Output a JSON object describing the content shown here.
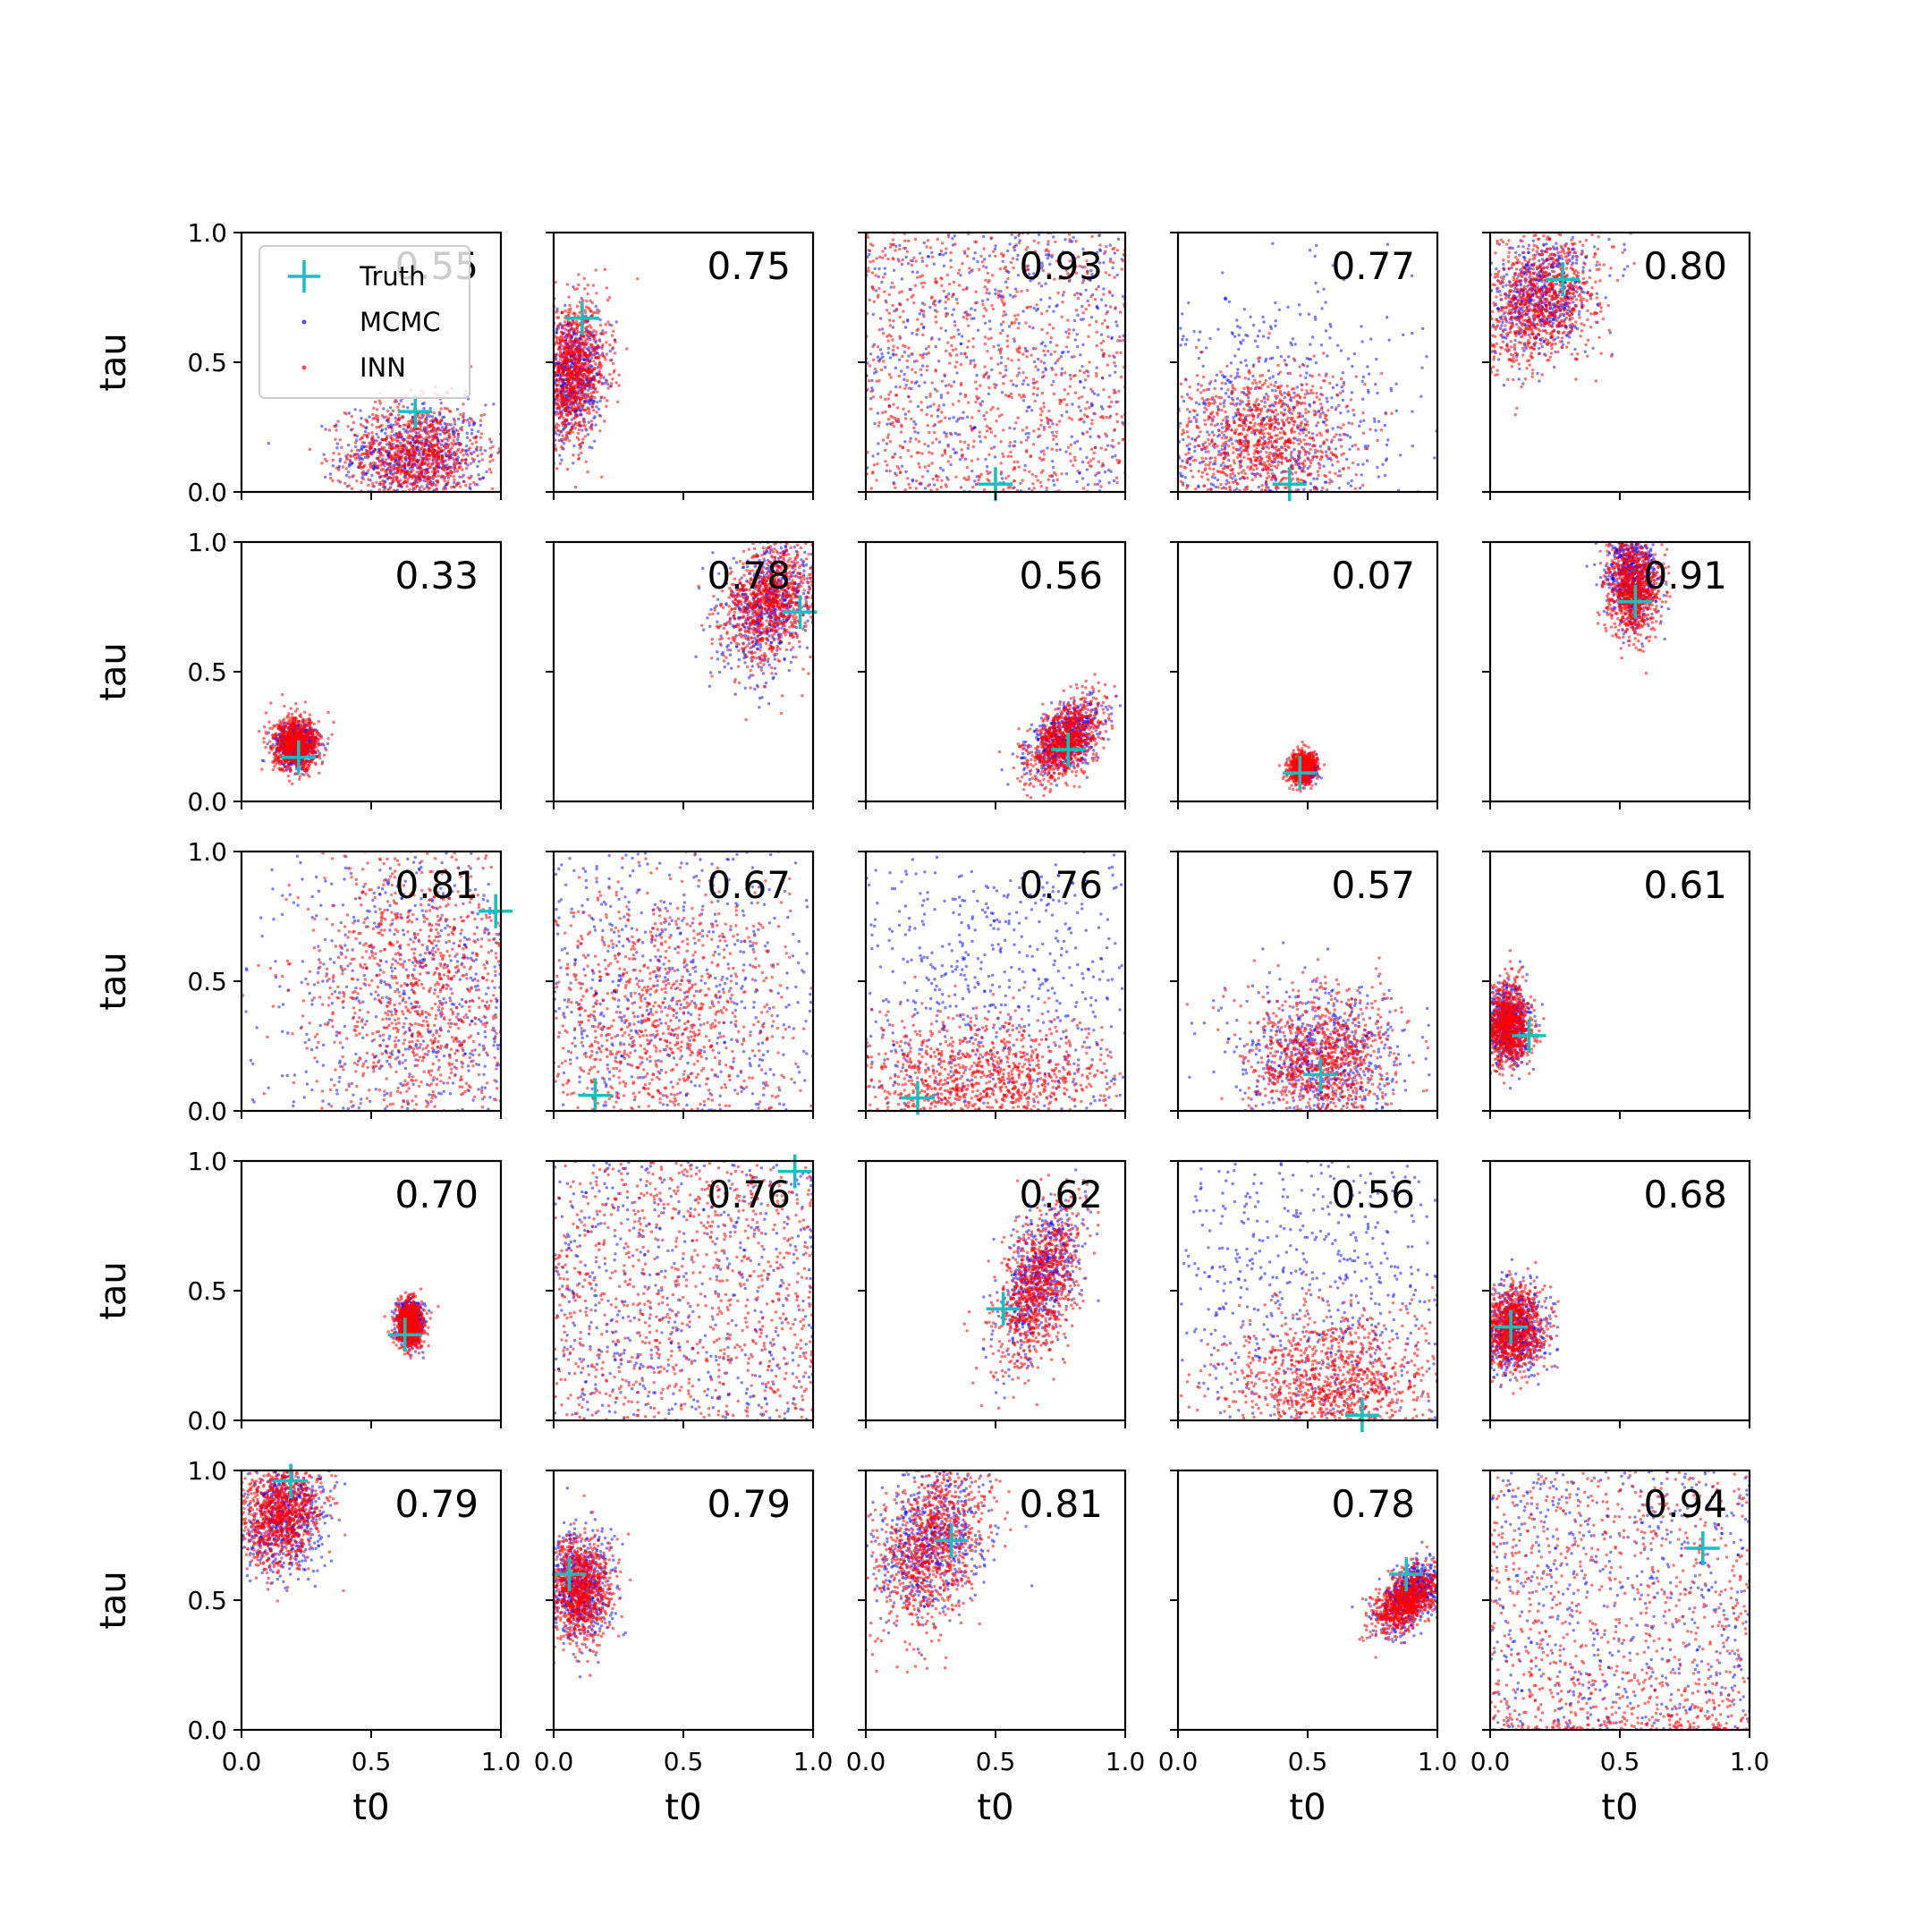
{
  "chart_data": {
    "type": "scatter",
    "grid": false,
    "rows": 5,
    "cols": 5,
    "xlabel": "t0",
    "ylabel": "tau",
    "xlim": [
      0,
      1
    ],
    "ylim": [
      0,
      1
    ],
    "xticks": [
      "0.0",
      "0.5",
      "1.0"
    ],
    "yticks": [
      "0.0",
      "0.5",
      "1.0"
    ],
    "legend": {
      "placement": "upper-left of first panel",
      "entries": [
        {
          "name": "Truth",
          "marker": "plus",
          "color": "#17bfbf"
        },
        {
          "name": "MCMC",
          "marker": "dot",
          "color": "#0000ff"
        },
        {
          "name": "INN",
          "marker": "dot",
          "color": "#ff0000"
        }
      ]
    },
    "colors": {
      "truth": "#17bfbf",
      "mcmc": "#0000ff",
      "inn": "#ff0000"
    },
    "panels": [
      {
        "value": "0.55",
        "truth": [
          0.67,
          0.31
        ],
        "mcmc": {
          "kind": "blob",
          "cx": 0.67,
          "cy": 0.14,
          "sx": 0.14,
          "sy": 0.1,
          "rho": 0.0
        },
        "inn": {
          "kind": "blob",
          "cx": 0.67,
          "cy": 0.14,
          "sx": 0.13,
          "sy": 0.1,
          "rho": 0.0
        }
      },
      {
        "value": "0.75",
        "truth": [
          0.11,
          0.67
        ],
        "mcmc": {
          "kind": "blob",
          "cx": 0.07,
          "cy": 0.45,
          "sx": 0.06,
          "sy": 0.12,
          "rho": 0.2
        },
        "inn": {
          "kind": "blob",
          "cx": 0.07,
          "cy": 0.45,
          "sx": 0.07,
          "sy": 0.13,
          "rho": 0.2
        }
      },
      {
        "value": "0.93",
        "truth": [
          0.5,
          0.03
        ],
        "mcmc": {
          "kind": "uniform"
        },
        "inn": {
          "kind": "uniform"
        }
      },
      {
        "value": "0.77",
        "truth": [
          0.43,
          0.03
        ],
        "mcmc": {
          "kind": "wide",
          "cx": 0.3,
          "cy": 0.18,
          "sx": 0.3,
          "sy": 0.3
        },
        "inn": {
          "kind": "blob",
          "cx": 0.32,
          "cy": 0.2,
          "sx": 0.17,
          "sy": 0.14,
          "rho": 0.0
        }
      },
      {
        "value": "0.80",
        "truth": [
          0.28,
          0.82
        ],
        "mcmc": {
          "kind": "blob",
          "cx": 0.2,
          "cy": 0.76,
          "sx": 0.1,
          "sy": 0.12,
          "rho": 0.3
        },
        "inn": {
          "kind": "blob",
          "cx": 0.2,
          "cy": 0.74,
          "sx": 0.11,
          "sy": 0.13,
          "rho": 0.3
        }
      },
      {
        "value": "0.33",
        "truth": [
          0.22,
          0.17
        ],
        "mcmc": {
          "kind": "blob",
          "cx": 0.21,
          "cy": 0.22,
          "sx": 0.04,
          "sy": 0.04,
          "rho": 0.0
        },
        "inn": {
          "kind": "blob",
          "cx": 0.21,
          "cy": 0.22,
          "sx": 0.045,
          "sy": 0.05,
          "rho": 0.0
        }
      },
      {
        "value": "0.78",
        "truth": [
          0.95,
          0.73
        ],
        "mcmc": {
          "kind": "blob",
          "cx": 0.83,
          "cy": 0.76,
          "sx": 0.09,
          "sy": 0.13,
          "rho": 0.3
        },
        "inn": {
          "kind": "blob",
          "cx": 0.84,
          "cy": 0.78,
          "sx": 0.09,
          "sy": 0.12,
          "rho": 0.3
        }
      },
      {
        "value": "0.56",
        "truth": [
          0.78,
          0.2
        ],
        "mcmc": {
          "kind": "blob",
          "cx": 0.77,
          "cy": 0.24,
          "sx": 0.07,
          "sy": 0.07,
          "rho": 0.5
        },
        "inn": {
          "kind": "blob",
          "cx": 0.77,
          "cy": 0.24,
          "sx": 0.07,
          "sy": 0.08,
          "rho": 0.5
        }
      },
      {
        "value": "0.07",
        "truth": [
          0.47,
          0.11
        ],
        "mcmc": {
          "kind": "blob",
          "cx": 0.49,
          "cy": 0.12,
          "sx": 0.02,
          "sy": 0.02,
          "rho": 0.0
        },
        "inn": {
          "kind": "blob",
          "cx": 0.48,
          "cy": 0.13,
          "sx": 0.025,
          "sy": 0.03,
          "rho": 0.2
        }
      },
      {
        "value": "0.91",
        "truth": [
          0.56,
          0.77
        ],
        "mcmc": {
          "kind": "blob",
          "cx": 0.55,
          "cy": 0.87,
          "sx": 0.05,
          "sy": 0.09,
          "rho": 0.0
        },
        "inn": {
          "kind": "blob",
          "cx": 0.55,
          "cy": 0.82,
          "sx": 0.05,
          "sy": 0.09,
          "rho": 0.0
        }
      },
      {
        "value": "0.81",
        "truth": [
          0.98,
          0.77
        ],
        "mcmc": {
          "kind": "wide",
          "cx": 0.75,
          "cy": 0.45,
          "sx": 0.35,
          "sy": 0.4
        },
        "inn": {
          "kind": "blob",
          "cx": 0.68,
          "cy": 0.45,
          "sx": 0.22,
          "sy": 0.32,
          "rho": 0.0
        }
      },
      {
        "value": "0.67",
        "truth": [
          0.16,
          0.06
        ],
        "mcmc": {
          "kind": "wide",
          "cx": 0.4,
          "cy": 0.45,
          "sx": 0.4,
          "sy": 0.45
        },
        "inn": {
          "kind": "blob",
          "cx": 0.38,
          "cy": 0.3,
          "sx": 0.25,
          "sy": 0.3,
          "rho": 0.0
        }
      },
      {
        "value": "0.76",
        "truth": [
          0.2,
          0.05
        ],
        "mcmc": {
          "kind": "wide",
          "cx": 0.5,
          "cy": 0.4,
          "sx": 0.4,
          "sy": 0.45
        },
        "inn": {
          "kind": "blob",
          "cx": 0.45,
          "cy": 0.12,
          "sx": 0.28,
          "sy": 0.12,
          "rho": 0.0
        }
      },
      {
        "value": "0.57",
        "truth": [
          0.55,
          0.14
        ],
        "mcmc": {
          "kind": "blob",
          "cx": 0.55,
          "cy": 0.2,
          "sx": 0.16,
          "sy": 0.14,
          "rho": 0.0
        },
        "inn": {
          "kind": "blob",
          "cx": 0.55,
          "cy": 0.2,
          "sx": 0.14,
          "sy": 0.13,
          "rho": 0.0
        }
      },
      {
        "value": "0.61",
        "truth": [
          0.15,
          0.29
        ],
        "mcmc": {
          "kind": "blob",
          "cx": 0.07,
          "cy": 0.33,
          "sx": 0.04,
          "sy": 0.07,
          "rho": 0.0
        },
        "inn": {
          "kind": "blob",
          "cx": 0.07,
          "cy": 0.33,
          "sx": 0.04,
          "sy": 0.08,
          "rho": 0.0
        }
      },
      {
        "value": "0.70",
        "truth": [
          0.63,
          0.33
        ],
        "mcmc": {
          "kind": "blob",
          "cx": 0.65,
          "cy": 0.37,
          "sx": 0.025,
          "sy": 0.04,
          "rho": 0.0
        },
        "inn": {
          "kind": "blob",
          "cx": 0.65,
          "cy": 0.37,
          "sx": 0.025,
          "sy": 0.045,
          "rho": 0.0
        }
      },
      {
        "value": "0.76",
        "truth": [
          0.93,
          0.96
        ],
        "mcmc": {
          "kind": "uniform"
        },
        "inn": {
          "kind": "uniform"
        }
      },
      {
        "value": "0.62",
        "truth": [
          0.53,
          0.43
        ],
        "mcmc": {
          "kind": "blob",
          "cx": 0.67,
          "cy": 0.55,
          "sx": 0.08,
          "sy": 0.15,
          "rho": 0.5
        },
        "inn": {
          "kind": "blob",
          "cx": 0.67,
          "cy": 0.53,
          "sx": 0.08,
          "sy": 0.16,
          "rho": 0.5
        }
      },
      {
        "value": "0.56",
        "truth": [
          0.71,
          0.02
        ],
        "mcmc": {
          "kind": "wide",
          "cx": 0.55,
          "cy": 0.45,
          "sx": 0.4,
          "sy": 0.45
        },
        "inn": {
          "kind": "blob",
          "cx": 0.6,
          "cy": 0.12,
          "sx": 0.2,
          "sy": 0.15,
          "rho": 0.0
        }
      },
      {
        "value": "0.68",
        "truth": [
          0.08,
          0.36
        ],
        "mcmc": {
          "kind": "blob",
          "cx": 0.09,
          "cy": 0.36,
          "sx": 0.06,
          "sy": 0.08,
          "rho": 0.0
        },
        "inn": {
          "kind": "blob",
          "cx": 0.09,
          "cy": 0.36,
          "sx": 0.06,
          "sy": 0.08,
          "rho": 0.0
        }
      },
      {
        "value": "0.79",
        "truth": [
          0.19,
          0.96
        ],
        "mcmc": {
          "kind": "blob",
          "cx": 0.17,
          "cy": 0.82,
          "sx": 0.08,
          "sy": 0.11,
          "rho": 0.2
        },
        "inn": {
          "kind": "blob",
          "cx": 0.15,
          "cy": 0.83,
          "sx": 0.08,
          "sy": 0.1,
          "rho": 0.2
        }
      },
      {
        "value": "0.79",
        "truth": [
          0.06,
          0.6
        ],
        "mcmc": {
          "kind": "blob",
          "cx": 0.1,
          "cy": 0.54,
          "sx": 0.06,
          "sy": 0.1,
          "rho": 0.0
        },
        "inn": {
          "kind": "blob",
          "cx": 0.1,
          "cy": 0.54,
          "sx": 0.06,
          "sy": 0.1,
          "rho": 0.0
        }
      },
      {
        "value": "0.81",
        "truth": [
          0.33,
          0.73
        ],
        "mcmc": {
          "kind": "blob",
          "cx": 0.25,
          "cy": 0.72,
          "sx": 0.11,
          "sy": 0.15,
          "rho": 0.3
        },
        "inn": {
          "kind": "blob",
          "cx": 0.25,
          "cy": 0.7,
          "sx": 0.11,
          "sy": 0.16,
          "rho": 0.3
        }
      },
      {
        "value": "0.78",
        "truth": [
          0.88,
          0.6
        ],
        "mcmc": {
          "kind": "blob",
          "cx": 0.9,
          "cy": 0.52,
          "sx": 0.06,
          "sy": 0.07,
          "rho": 0.5
        },
        "inn": {
          "kind": "blob",
          "cx": 0.88,
          "cy": 0.5,
          "sx": 0.06,
          "sy": 0.06,
          "rho": 0.5
        }
      },
      {
        "value": "0.94",
        "truth": [
          0.82,
          0.7
        ],
        "mcmc": {
          "kind": "uniform"
        },
        "inn": {
          "kind": "uniform_low"
        }
      }
    ]
  }
}
